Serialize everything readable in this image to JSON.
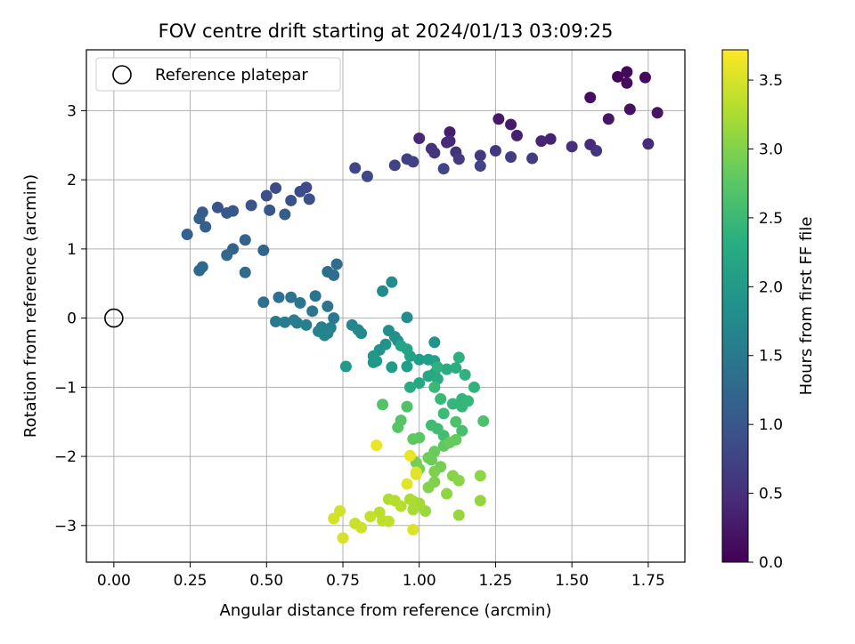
{
  "chart_data": {
    "type": "scatter",
    "title": "FOV centre drift starting at 2024/01/13 03:09:25",
    "xlabel": "Angular distance from reference (arcmin)",
    "ylabel": "Rotation from reference (arcmin)",
    "xlim": [
      -0.09,
      1.87
    ],
    "ylim": [
      -3.53,
      3.88
    ],
    "xticks": [
      0.0,
      0.25,
      0.5,
      0.75,
      1.0,
      1.25,
      1.5,
      1.75
    ],
    "xtick_labels": [
      "0.00",
      "0.25",
      "0.50",
      "0.75",
      "1.00",
      "1.25",
      "1.50",
      "1.75"
    ],
    "yticks": [
      -3,
      -2,
      -1,
      0,
      1,
      2,
      3
    ],
    "ytick_labels": [
      "−3",
      "−2",
      "−1",
      "0",
      "1",
      "2",
      "3"
    ],
    "grid": true,
    "legend": {
      "placement": "upper-left",
      "entries": [
        "Reference platepar"
      ]
    },
    "reference_point": {
      "x": 0.0,
      "y": 0.0
    },
    "colorbar": {
      "label": "Hours from first FF file",
      "colormap": "viridis",
      "range": [
        0.0,
        3.72
      ],
      "ticks": [
        0.0,
        0.5,
        1.0,
        1.5,
        2.0,
        2.5,
        3.0,
        3.5
      ],
      "tick_labels": [
        "0.0",
        "0.5",
        "1.0",
        "1.5",
        "2.0",
        "2.5",
        "3.0",
        "3.5"
      ]
    },
    "series": [
      {
        "points": [
          [
            1.65,
            3.49,
            0.05
          ],
          [
            1.68,
            3.56,
            0.08
          ],
          [
            1.74,
            3.48,
            0.1
          ],
          [
            1.68,
            3.4,
            0.12
          ],
          [
            1.56,
            3.19,
            0.15
          ],
          [
            1.69,
            3.02,
            0.17
          ],
          [
            1.78,
            2.97,
            0.2
          ],
          [
            1.62,
            2.88,
            0.22
          ],
          [
            1.26,
            2.88,
            0.25
          ],
          [
            1.3,
            2.8,
            0.27
          ],
          [
            1.1,
            2.69,
            0.3
          ],
          [
            1.32,
            2.64,
            0.32
          ],
          [
            1.43,
            2.59,
            0.35
          ],
          [
            1.4,
            2.56,
            0.37
          ],
          [
            1.0,
            2.6,
            0.4
          ],
          [
            1.1,
            2.56,
            0.42
          ],
          [
            1.09,
            2.54,
            0.44
          ],
          [
            1.56,
            2.51,
            0.46
          ],
          [
            1.75,
            2.52,
            0.48
          ],
          [
            1.5,
            2.48,
            0.5
          ],
          [
            1.04,
            2.45,
            0.52
          ],
          [
            1.12,
            2.4,
            0.54
          ],
          [
            1.05,
            2.39,
            0.56
          ],
          [
            1.58,
            2.42,
            0.58
          ],
          [
            1.25,
            2.42,
            0.6
          ],
          [
            1.2,
            2.35,
            0.62
          ],
          [
            1.13,
            2.3,
            0.64
          ],
          [
            1.3,
            2.33,
            0.66
          ],
          [
            1.37,
            2.31,
            0.68
          ],
          [
            0.96,
            2.3,
            0.7
          ],
          [
            0.98,
            2.26,
            0.72
          ],
          [
            0.92,
            2.21,
            0.74
          ],
          [
            1.2,
            2.2,
            0.76
          ],
          [
            1.08,
            2.16,
            0.78
          ],
          [
            0.79,
            2.17,
            0.8
          ],
          [
            0.83,
            2.05,
            0.82
          ],
          [
            0.63,
            1.89,
            0.84
          ],
          [
            0.53,
            1.88,
            0.86
          ],
          [
            0.61,
            1.83,
            0.88
          ],
          [
            0.5,
            1.77,
            0.9
          ],
          [
            0.64,
            1.72,
            0.92
          ],
          [
            0.58,
            1.7,
            0.94
          ],
          [
            0.45,
            1.63,
            0.96
          ],
          [
            0.34,
            1.6,
            0.98
          ],
          [
            0.51,
            1.56,
            1.0
          ],
          [
            0.39,
            1.55,
            1.02
          ],
          [
            0.37,
            1.52,
            1.04
          ],
          [
            0.29,
            1.53,
            1.06
          ],
          [
            0.56,
            1.5,
            1.08
          ],
          [
            0.28,
            1.44,
            1.1
          ],
          [
            0.3,
            1.32,
            1.12
          ],
          [
            0.24,
            1.21,
            1.14
          ],
          [
            0.43,
            1.13,
            1.16
          ],
          [
            0.39,
            1.0,
            1.18
          ],
          [
            0.49,
            0.98,
            1.2
          ],
          [
            0.37,
            0.91,
            1.22
          ],
          [
            0.29,
            0.74,
            1.24
          ],
          [
            0.28,
            0.69,
            1.26
          ],
          [
            0.43,
            0.66,
            1.28
          ],
          [
            0.73,
            0.78,
            1.3
          ],
          [
            0.7,
            0.67,
            1.32
          ],
          [
            0.72,
            0.62,
            1.34
          ],
          [
            0.49,
            0.23,
            1.36
          ],
          [
            0.54,
            0.3,
            1.38
          ],
          [
            0.58,
            0.3,
            1.4
          ],
          [
            0.66,
            0.32,
            1.42
          ],
          [
            0.61,
            0.22,
            1.44
          ],
          [
            0.7,
            0.17,
            1.46
          ],
          [
            0.65,
            0.1,
            1.48
          ],
          [
            0.72,
            0.0,
            1.5
          ],
          [
            0.53,
            -0.05,
            1.52
          ],
          [
            0.56,
            -0.06,
            1.54
          ],
          [
            0.6,
            -0.07,
            1.56
          ],
          [
            0.59,
            -0.03,
            1.58
          ],
          [
            0.63,
            -0.1,
            1.6
          ],
          [
            0.68,
            -0.13,
            1.62
          ],
          [
            0.71,
            -0.14,
            1.64
          ],
          [
            0.67,
            -0.19,
            1.66
          ],
          [
            0.7,
            -0.22,
            1.68
          ],
          [
            0.69,
            -0.25,
            1.7
          ],
          [
            0.78,
            -0.1,
            1.72
          ],
          [
            0.8,
            -0.17,
            1.74
          ],
          [
            0.81,
            -0.22,
            1.76
          ],
          [
            0.88,
            0.39,
            1.78
          ],
          [
            0.91,
            0.52,
            1.8
          ],
          [
            0.96,
            0.01,
            1.82
          ],
          [
            0.9,
            -0.18,
            1.84
          ],
          [
            0.92,
            -0.27,
            1.86
          ],
          [
            0.93,
            -0.33,
            1.88
          ],
          [
            0.89,
            -0.38,
            1.9
          ],
          [
            1.05,
            -0.35,
            1.92
          ],
          [
            0.87,
            -0.46,
            1.94
          ],
          [
            0.85,
            -0.55,
            1.96
          ],
          [
            0.86,
            -0.62,
            1.98
          ],
          [
            0.85,
            -0.64,
            2.0
          ],
          [
            0.76,
            -0.7,
            2.02
          ],
          [
            0.91,
            -0.71,
            2.04
          ],
          [
            0.96,
            -0.7,
            2.06
          ],
          [
            1.0,
            -0.6,
            2.08
          ],
          [
            1.03,
            -0.6,
            2.1
          ],
          [
            1.05,
            -0.62,
            2.12
          ],
          [
            0.97,
            -0.55,
            2.14
          ],
          [
            0.96,
            -0.45,
            2.16
          ],
          [
            0.94,
            -0.4,
            2.18
          ],
          [
            1.05,
            -0.8,
            2.2
          ],
          [
            1.03,
            -0.84,
            2.22
          ],
          [
            1.0,
            -0.94,
            2.24
          ],
          [
            0.97,
            -1.0,
            2.26
          ],
          [
            1.06,
            -0.88,
            2.28
          ],
          [
            1.09,
            -0.74,
            2.3
          ],
          [
            1.12,
            -0.72,
            2.32
          ],
          [
            1.13,
            -0.57,
            2.34
          ],
          [
            1.06,
            -0.71,
            2.36
          ],
          [
            1.15,
            -0.82,
            2.38
          ],
          [
            1.18,
            -1.0,
            2.4
          ],
          [
            1.14,
            -1.17,
            2.42
          ],
          [
            1.11,
            -1.24,
            2.44
          ],
          [
            1.14,
            -1.28,
            2.46
          ],
          [
            1.16,
            -1.2,
            2.48
          ],
          [
            1.07,
            -1.17,
            2.5
          ],
          [
            1.05,
            -1.0,
            2.52
          ],
          [
            1.08,
            -1.38,
            2.54
          ],
          [
            1.04,
            -1.55,
            2.56
          ],
          [
            1.06,
            -1.6,
            2.58
          ],
          [
            1.08,
            -1.7,
            2.6
          ],
          [
            1.14,
            -1.63,
            2.62
          ],
          [
            1.21,
            -1.49,
            2.64
          ],
          [
            1.12,
            -1.5,
            2.66
          ],
          [
            0.96,
            -1.28,
            2.68
          ],
          [
            0.88,
            -1.25,
            2.7
          ],
          [
            0.94,
            -1.48,
            2.72
          ],
          [
            0.93,
            -1.58,
            2.74
          ],
          [
            1.0,
            -1.73,
            2.76
          ],
          [
            0.98,
            -1.75,
            2.78
          ],
          [
            1.08,
            -1.85,
            2.8
          ],
          [
            1.12,
            -1.76,
            2.82
          ],
          [
            1.1,
            -1.8,
            2.84
          ],
          [
            1.05,
            -1.93,
            2.86
          ],
          [
            1.04,
            -2.05,
            2.88
          ],
          [
            1.03,
            -2.02,
            2.9
          ],
          [
            1.07,
            -2.15,
            2.92
          ],
          [
            0.99,
            -2.09,
            2.94
          ],
          [
            1.0,
            -2.18,
            2.96
          ],
          [
            1.05,
            -2.22,
            2.98
          ],
          [
            1.05,
            -2.37,
            3.0
          ],
          [
            1.03,
            -2.45,
            3.02
          ],
          [
            1.11,
            -2.28,
            3.04
          ],
          [
            1.13,
            -2.35,
            3.06
          ],
          [
            1.2,
            -2.28,
            3.08
          ],
          [
            1.09,
            -2.54,
            3.1
          ],
          [
            1.2,
            -2.64,
            3.12
          ],
          [
            1.13,
            -2.85,
            3.14
          ],
          [
            1.02,
            -2.79,
            3.16
          ],
          [
            0.98,
            -2.65,
            3.18
          ],
          [
            1.0,
            -2.68,
            3.2
          ],
          [
            1.0,
            -2.7,
            3.22
          ],
          [
            0.98,
            -2.77,
            3.24
          ],
          [
            0.97,
            -2.62,
            3.26
          ],
          [
            0.9,
            -2.62,
            3.28
          ],
          [
            0.92,
            -2.64,
            3.3
          ],
          [
            0.94,
            -2.72,
            3.32
          ],
          [
            0.87,
            -2.81,
            3.34
          ],
          [
            0.88,
            -2.93,
            3.36
          ],
          [
            0.9,
            -2.94,
            3.38
          ],
          [
            0.84,
            -2.87,
            3.4
          ],
          [
            0.79,
            -2.97,
            3.42
          ],
          [
            0.81,
            -3.03,
            3.44
          ],
          [
            0.74,
            -2.79,
            3.46
          ],
          [
            0.72,
            -2.9,
            3.48
          ],
          [
            0.75,
            -3.18,
            3.5
          ],
          [
            0.98,
            -3.06,
            3.52
          ],
          [
            0.99,
            -2.26,
            3.54
          ],
          [
            0.99,
            -2.23,
            3.56
          ],
          [
            0.96,
            -2.4,
            3.58
          ],
          [
            0.97,
            -1.99,
            3.6
          ],
          [
            0.86,
            -1.84,
            3.62
          ]
        ]
      }
    ]
  }
}
